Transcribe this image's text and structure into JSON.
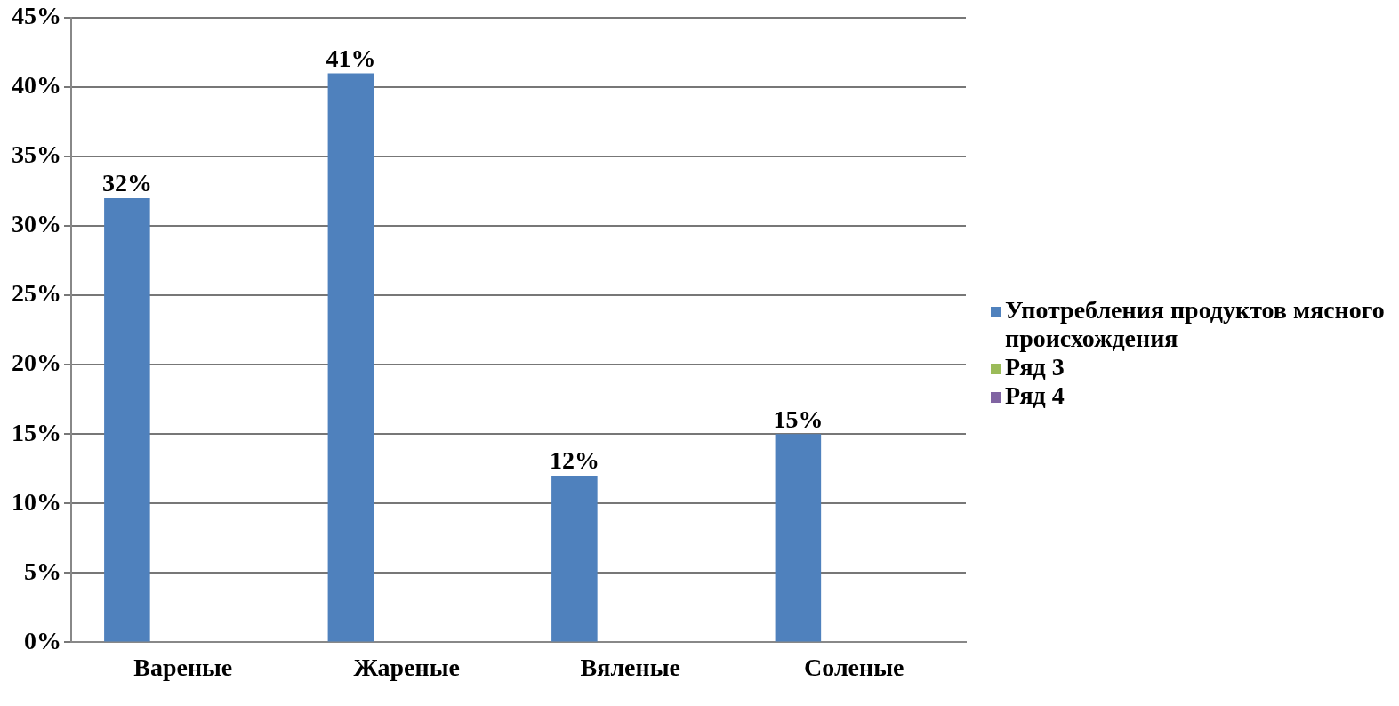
{
  "chart_data": {
    "type": "bar",
    "categories": [
      "Вареные",
      "Жареные",
      "Вяленые",
      "Соленые"
    ],
    "series": [
      {
        "name": "Употребления продуктов мясного происхождения",
        "color": "#4f81bd",
        "values": [
          32,
          41,
          12,
          15
        ],
        "value_labels": [
          "32%",
          "41%",
          "12%",
          "15%"
        ]
      },
      {
        "name": "Ряд 3",
        "color": "#9bbb59",
        "values": [
          null,
          null,
          null,
          null
        ]
      },
      {
        "name": "Ряд 4",
        "color": "#8064a2",
        "values": [
          null,
          null,
          null,
          null
        ]
      }
    ],
    "ylim": [
      0,
      45
    ],
    "yticks": [
      {
        "value": 0,
        "label": "0%"
      },
      {
        "value": 5,
        "label": "5%"
      },
      {
        "value": 10,
        "label": "10%"
      },
      {
        "value": 15,
        "label": "15%"
      },
      {
        "value": 20,
        "label": "20%"
      },
      {
        "value": 25,
        "label": "25%"
      },
      {
        "value": 30,
        "label": "30%"
      },
      {
        "value": 35,
        "label": "35%"
      },
      {
        "value": 40,
        "label": "40%"
      },
      {
        "value": 45,
        "label": "45%"
      }
    ],
    "grid": "y",
    "legend": "right"
  }
}
